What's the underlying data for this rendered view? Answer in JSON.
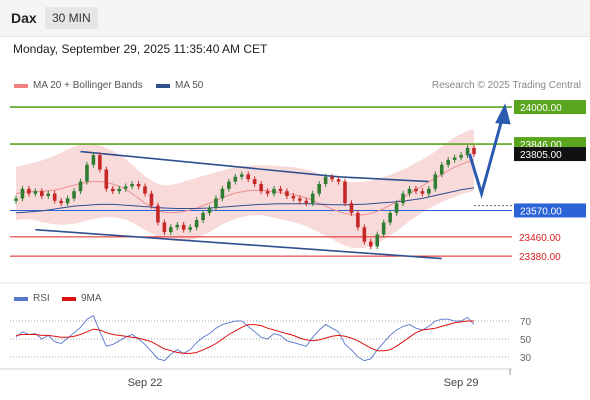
{
  "header": {
    "symbol": "Dax",
    "timeframe": "30 MIN"
  },
  "datetime": "Monday, September 29, 2025 11:35:40 AM CET",
  "legend": {
    "ma20": {
      "label": "MA 20 + Bollinger Bands",
      "color": "#f08080"
    },
    "ma50": {
      "label": "MA 50",
      "color": "#2f4f8f"
    },
    "credit": "Research © 2025 Trading Central"
  },
  "rsi_legend": {
    "rsi": {
      "label": "RSI",
      "color": "#5577cc"
    },
    "ma9": {
      "label": "9MA",
      "color": "#dd1111"
    }
  },
  "chart_data": {
    "type": "candlestick",
    "x_ticks": [
      "Sep 22",
      "Sep 29"
    ],
    "levels": [
      {
        "value": 24000.0,
        "label": "24000.00",
        "kind": "resistance",
        "color": "#5aa51e"
      },
      {
        "value": 23846.0,
        "label": "23846.00",
        "kind": "resistance",
        "color": "#5aa51e"
      },
      {
        "value": 23805.0,
        "label": "23805.00",
        "kind": "last-price",
        "color": "#111111"
      },
      {
        "value": 23570.0,
        "label": "23570.00",
        "kind": "pivot",
        "color": "#2b64d6"
      },
      {
        "value": 23460.0,
        "label": "23460.00",
        "kind": "support",
        "color": "#dd2222"
      },
      {
        "value": 23380.0,
        "label": "23380.00",
        "kind": "support",
        "color": "#dd2222"
      }
    ],
    "closes": [
      23620,
      23660,
      23640,
      23650,
      23630,
      23640,
      23610,
      23600,
      23620,
      23650,
      23690,
      23760,
      23800,
      23740,
      23660,
      23650,
      23660,
      23670,
      23680,
      23670,
      23640,
      23590,
      23520,
      23480,
      23500,
      23510,
      23490,
      23500,
      23530,
      23560,
      23580,
      23620,
      23660,
      23690,
      23710,
      23720,
      23700,
      23680,
      23650,
      23640,
      23660,
      23650,
      23630,
      23620,
      23610,
      23600,
      23640,
      23680,
      23710,
      23700,
      23690,
      23600,
      23560,
      23500,
      23440,
      23420,
      23470,
      23520,
      23560,
      23600,
      23640,
      23660,
      23650,
      23640,
      23660,
      23720,
      23760,
      23780,
      23790,
      23800,
      23830,
      23805
    ],
    "ma20": [
      23640,
      23645,
      23648,
      23650,
      23650,
      23652,
      23655,
      23660,
      23668,
      23675,
      23682,
      23688,
      23690,
      23690,
      23686,
      23680,
      23670,
      23658,
      23640,
      23620,
      23600,
      23585,
      23570,
      23562,
      23560,
      23562,
      23566,
      23572,
      23580,
      23590,
      23600,
      23612,
      23624,
      23634,
      23642,
      23648,
      23652,
      23654,
      23654,
      23652,
      23648,
      23644,
      23640,
      23636,
      23630,
      23622,
      23612,
      23600,
      23588,
      23576,
      23566,
      23558,
      23552,
      23550,
      23552,
      23558,
      23566,
      23578,
      23592,
      23606,
      23622,
      23640,
      23656,
      23672,
      23688,
      23704,
      23720,
      23736,
      23750,
      23762,
      23772,
      23780
    ],
    "ma50": [
      23560,
      23562,
      23564,
      23566,
      23568,
      23572,
      23576,
      23580,
      23584,
      23588,
      23590,
      23592,
      23594,
      23595,
      23595,
      23595,
      23594,
      23592,
      23590,
      23588,
      23586,
      23584,
      23582,
      23580,
      23579,
      23578,
      23578,
      23578,
      23578,
      23579,
      23580,
      23582,
      23584,
      23586,
      23588,
      23590,
      23592,
      23594,
      23595,
      23596,
      23597,
      23598,
      23598,
      23598,
      23598,
      23598,
      23597,
      23596,
      23595,
      23594,
      23594,
      23594,
      23594,
      23595,
      23596,
      23598,
      23600,
      23602,
      23604,
      23606,
      23608,
      23612,
      23616,
      23620,
      23626,
      23632,
      23638,
      23644,
      23650,
      23656,
      23660,
      23664
    ],
    "bb_width": [
      110,
      112,
      115,
      120,
      128,
      136,
      142,
      150,
      156,
      160,
      162,
      160,
      156,
      150,
      144,
      138,
      132,
      126,
      120,
      116,
      112,
      110,
      110,
      112,
      116,
      120,
      124,
      126,
      126,
      124,
      120,
      116,
      112,
      110,
      108,
      106,
      104,
      104,
      104,
      106,
      108,
      110,
      112,
      114,
      116,
      118,
      120,
      122,
      124,
      126,
      130,
      134,
      136,
      138,
      138,
      136,
      134,
      130,
      126,
      122,
      118,
      114,
      112,
      110,
      110,
      112,
      116,
      120,
      124,
      126,
      128,
      128
    ],
    "rsi": [
      52,
      58,
      55,
      56,
      50,
      54,
      47,
      45,
      51,
      57,
      63,
      72,
      76,
      58,
      42,
      44,
      48,
      52,
      55,
      50,
      44,
      36,
      28,
      26,
      33,
      38,
      34,
      38,
      46,
      52,
      56,
      62,
      66,
      68,
      70,
      70,
      64,
      58,
      52,
      50,
      56,
      54,
      48,
      46,
      44,
      42,
      52,
      60,
      66,
      62,
      58,
      44,
      38,
      30,
      26,
      28,
      38,
      46,
      54,
      60,
      64,
      66,
      62,
      60,
      64,
      70,
      72,
      72,
      70,
      70,
      74,
      66
    ],
    "rsi_ma9": [
      54,
      55,
      55,
      55,
      54,
      54,
      53,
      52,
      52,
      53,
      55,
      58,
      61,
      60,
      57,
      55,
      54,
      53,
      52,
      51,
      49,
      47,
      43,
      39,
      37,
      35,
      34,
      34,
      35,
      38,
      41,
      45,
      50,
      55,
      59,
      63,
      66,
      66,
      65,
      62,
      60,
      58,
      56,
      54,
      51,
      49,
      48,
      49,
      51,
      53,
      54,
      53,
      51,
      48,
      44,
      40,
      37,
      37,
      38,
      42,
      47,
      52,
      57,
      60,
      61,
      62,
      64,
      66,
      68,
      69,
      70,
      70
    ],
    "rsi_levels": [
      70,
      50,
      30
    ]
  }
}
